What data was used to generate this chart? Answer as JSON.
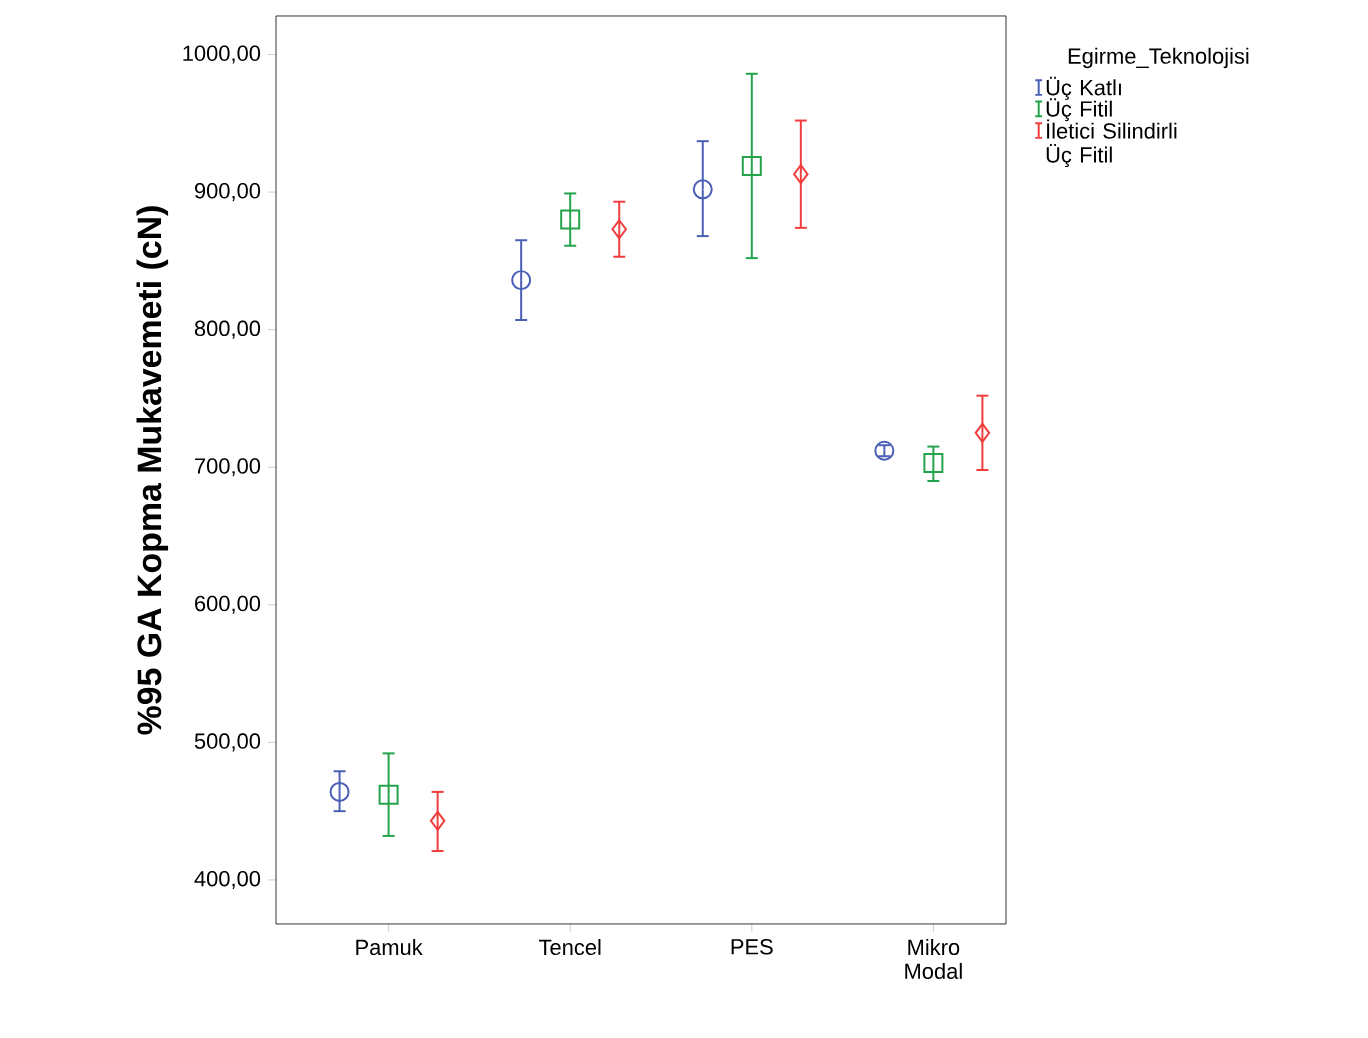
{
  "chart_data": {
    "type": "scatter",
    "ylabel": "%95 GA Kopma Mukavemeti (cN)",
    "legend_title": "Egirme_Teknolojisi",
    "categories": [
      "Pamuk",
      "Tencel",
      "PES",
      "Mikro Modal"
    ],
    "ylim": [
      368,
      1028
    ],
    "yticks": [
      {
        "value": 400,
        "label": "400,00"
      },
      {
        "value": 500,
        "label": "500,00"
      },
      {
        "value": 600,
        "label": "600,00"
      },
      {
        "value": 700,
        "label": "700,00"
      },
      {
        "value": 800,
        "label": "800,00"
      },
      {
        "value": 900,
        "label": "900,00"
      },
      {
        "value": 1000,
        "label": "1000,00"
      }
    ],
    "legend": "top right",
    "grid": false,
    "series": [
      {
        "name": "Üç Katlı",
        "color": "#4a5fb5",
        "marker": "circle",
        "values": [
          464,
          836,
          902,
          712
        ],
        "errors": [
          [
            450,
            479
          ],
          [
            807,
            865
          ],
          [
            868,
            937
          ],
          [
            708,
            716
          ]
        ]
      },
      {
        "name": "Üç Fitil",
        "color": "#23a34a",
        "marker": "square",
        "values": [
          462,
          880,
          919,
          703
        ],
        "errors": [
          [
            432,
            492
          ],
          [
            861,
            899
          ],
          [
            852,
            986
          ],
          [
            690,
            715
          ]
        ]
      },
      {
        "name": "İletici Silindirli Üç Fitil",
        "color": "#f03c3c",
        "marker": "diamond",
        "values": [
          443,
          873,
          913,
          725
        ],
        "errors": [
          [
            421,
            464
          ],
          [
            853,
            893
          ],
          [
            874,
            952
          ],
          [
            698,
            752
          ]
        ]
      }
    ]
  }
}
